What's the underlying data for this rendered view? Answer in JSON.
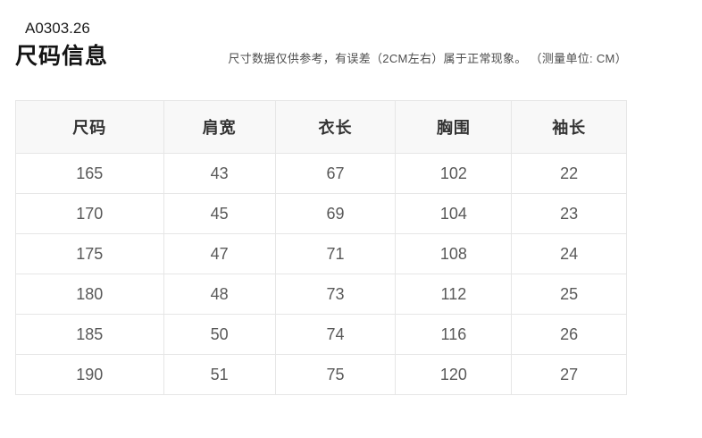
{
  "page": {
    "product_code": "A0303.26",
    "section_title": "尺码信息",
    "note": "尺寸数据仅供参考，有误差（2CM左右）属于正常现象。 （测量单位: CM）"
  },
  "chart_data": {
    "type": "table",
    "title": "尺码信息",
    "unit": "CM",
    "columns": [
      "尺码",
      "肩宽",
      "衣长",
      "胸围",
      "袖长"
    ],
    "rows": [
      [
        165,
        43,
        67,
        102,
        22
      ],
      [
        170,
        45,
        69,
        104,
        23
      ],
      [
        175,
        47,
        71,
        108,
        24
      ],
      [
        180,
        48,
        73,
        112,
        25
      ],
      [
        185,
        50,
        74,
        116,
        26
      ],
      [
        190,
        51,
        75,
        120,
        27
      ]
    ]
  },
  "colors": {
    "background": "#ffffff",
    "table_border": "#e6e6e6",
    "header_background": "#f8f8f8",
    "header_text": "#333333",
    "cell_text": "#595959",
    "title_text": "#141414",
    "note_text": "#4d4d4d"
  }
}
